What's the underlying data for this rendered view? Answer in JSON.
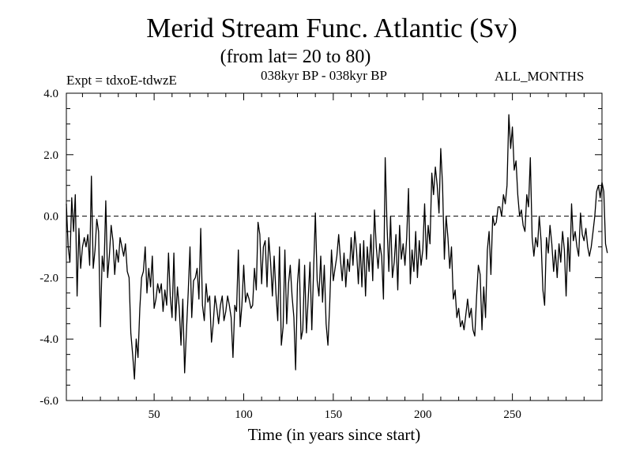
{
  "chart_data": {
    "type": "line",
    "title": "Merid Stream Func. Atlantic (Sv)",
    "subtitle": "(from lat= 20 to 80)",
    "annotations": {
      "left": "Expt = tdxoE-tdwzE",
      "center": "038kyr BP - 038kyr BP",
      "right": "ALL_MONTHS"
    },
    "xlabel": "Time (in years since start)",
    "ylabel": "",
    "xlim": [
      1,
      300
    ],
    "ylim": [
      -6.0,
      4.0
    ],
    "xticks": [
      50,
      100,
      150,
      200,
      250
    ],
    "yticks": [
      "-6.0",
      "-4.0",
      "-2.0",
      "0.0",
      "2.0",
      "4.0"
    ],
    "reference_line": {
      "y": 0.0,
      "style": "dashed"
    },
    "series": [
      {
        "values": [
          0.4,
          -1.0,
          -1.5,
          0.6,
          -0.5,
          0.7,
          -2.6,
          -0.4,
          -1.7,
          -1.0,
          -0.7,
          -1.0,
          -0.6,
          -1.6,
          1.3,
          -1.7,
          -1.1,
          -0.1,
          -0.5,
          -3.6,
          -1.3,
          -1.8,
          0.5,
          -2.0,
          -1.3,
          -0.3,
          -0.8,
          -1.9,
          -1.1,
          -1.5,
          -0.7,
          -1.0,
          -1.3,
          -0.9,
          -1.8,
          -2.0,
          -3.8,
          -4.5,
          -5.3,
          -4.0,
          -4.6,
          -3.0,
          -2.0,
          -1.8,
          -1.0,
          -2.5,
          -1.7,
          -2.3,
          -1.3,
          -3.0,
          -2.7,
          -2.2,
          -2.5,
          -2.2,
          -3.1,
          -2.4,
          -2.9,
          -1.2,
          -2.6,
          -3.3,
          -1.2,
          -3.4,
          -2.3,
          -3.0,
          -4.2,
          -2.7,
          -5.1,
          -3.8,
          -2.5,
          -1.0,
          -3.3,
          -2.1,
          -2.0,
          -1.7,
          -2.7,
          -0.4,
          -2.9,
          -3.4,
          -2.2,
          -2.8,
          -2.6,
          -4.1,
          -3.5,
          -2.6,
          -3.0,
          -3.5,
          -2.9,
          -2.6,
          -3.4,
          -3.1,
          -2.6,
          -2.9,
          -3.3,
          -4.6,
          -2.9,
          -3.1,
          -1.1,
          -3.6,
          -2.9,
          -1.6,
          -2.8,
          -2.5,
          -2.7,
          -3.0,
          -2.9,
          -1.7,
          -2.4,
          -0.2,
          -0.6,
          -2.2,
          -1.0,
          -0.8,
          -2.3,
          -0.7,
          -1.5,
          -2.6,
          -1.3,
          -2.5,
          -3.4,
          -1.0,
          -4.2,
          -3.6,
          -1.1,
          -3.5,
          -2.2,
          -1.6,
          -2.6,
          -3.3,
          -5.0,
          -2.2,
          -1.4,
          -4.0,
          -3.7,
          -1.6,
          -3.8,
          -2.7,
          -1.5,
          -3.7,
          -1.8,
          0.1,
          -2.1,
          -2.6,
          -1.3,
          -2.8,
          -1.6,
          -3.5,
          -4.2,
          -2.9,
          -1.1,
          -2.1,
          -1.7,
          -1.3,
          -0.6,
          -1.4,
          -2.1,
          -1.2,
          -2.3,
          -1.4,
          -1.8,
          -0.7,
          -1.6,
          -0.5,
          -1.1,
          -2.2,
          -0.9,
          -2.3,
          -0.8,
          -2.6,
          -1.0,
          -1.8,
          -0.6,
          -2.1,
          0.2,
          -1.0,
          -1.7,
          -0.9,
          -1.3,
          -2.7,
          1.9,
          -0.3,
          -1.8,
          0.0,
          -2.0,
          -1.5,
          -0.6,
          -2.4,
          -0.3,
          -1.4,
          -0.9,
          -1.6,
          -0.7,
          0.9,
          -2.2,
          -1.1,
          -1.8,
          -0.5,
          -2.0,
          -0.8,
          -1.6,
          -1.1,
          0.4,
          -1.4,
          -0.3,
          -0.9,
          1.4,
          0.7,
          1.6,
          1.0,
          0.1,
          2.2,
          1.0,
          -1.4,
          0.0,
          -0.7,
          -1.7,
          -1.0,
          -2.7,
          -2.4,
          -3.3,
          -3.0,
          -3.6,
          -3.4,
          -3.7,
          -3.2,
          -2.7,
          -3.3,
          -3.0,
          -3.7,
          -3.9,
          -2.6,
          -1.6,
          -1.9,
          -3.7,
          -2.3,
          -3.3,
          -1.1,
          -0.5,
          -1.9,
          0.0,
          -0.3,
          -0.2,
          0.3,
          0.3,
          0.0,
          0.7,
          0.4,
          1.0,
          3.3,
          2.2,
          2.9,
          1.5,
          1.8,
          0.7,
          0.0,
          0.2,
          -0.3,
          -0.5,
          0.7,
          0.3,
          1.9,
          -0.7,
          -1.3,
          -0.7,
          -1.0,
          0.0,
          -0.8,
          -2.4,
          -2.9,
          -0.7,
          -1.2,
          -0.3,
          -0.9,
          -1.8,
          -1.1,
          -2.0,
          -0.9,
          -1.5,
          -0.5,
          -1.1,
          -2.6,
          -0.7,
          -1.8,
          0.4,
          -0.8,
          -0.5,
          -1.0,
          -1.3,
          0.1,
          -0.6,
          -0.8,
          -0.4,
          -1.0,
          -1.3,
          -1.0,
          -0.5,
          0.0,
          0.8,
          1.0,
          0.6,
          1.1,
          0.8,
          -0.9,
          -1.2
        ]
      }
    ]
  }
}
